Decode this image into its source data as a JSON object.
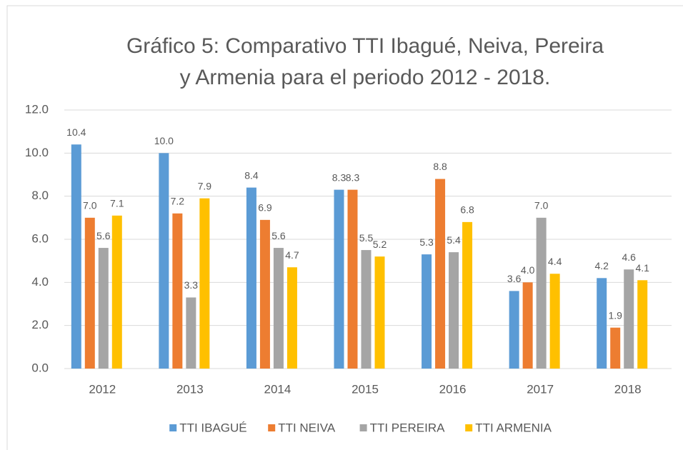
{
  "chart_data": {
    "type": "bar",
    "title": [
      "Gráfico 5: Comparativo TTI Ibagué, Neiva, Pereira",
      "y Armenia para el periodo 2012 - 2018."
    ],
    "categories": [
      "2012",
      "2013",
      "2014",
      "2015",
      "2016",
      "2017",
      "2018"
    ],
    "series": [
      {
        "name": "TTI IBAGUÉ",
        "color": "#5b9bd5",
        "values": [
          10.4,
          10.0,
          8.4,
          8.3,
          5.3,
          3.6,
          4.2
        ],
        "value_labels": [
          "10.4",
          "10.0",
          "8.4",
          "8.3",
          "5.3",
          "3.6",
          "4.2"
        ]
      },
      {
        "name": "TTI NEIVA",
        "color": "#ed7d31",
        "values": [
          7.0,
          7.2,
          6.9,
          8.3,
          8.8,
          4.0,
          1.9
        ],
        "value_labels": [
          "7.0",
          "7.2",
          "6.9",
          "8.3",
          "8.8",
          "4.0",
          "1.9"
        ]
      },
      {
        "name": "TTI PEREIRA",
        "color": "#a5a5a5",
        "values": [
          5.6,
          3.3,
          5.6,
          5.5,
          5.4,
          7.0,
          4.6
        ],
        "value_labels": [
          "5.6",
          "3.3",
          "5.6",
          "5.5",
          "5.4",
          "7.0",
          "4.6"
        ]
      },
      {
        "name": "TTI ARMENIA",
        "color": "#ffc000",
        "values": [
          7.1,
          7.9,
          4.7,
          5.2,
          6.8,
          4.4,
          4.1
        ],
        "value_labels": [
          "7.1",
          "7.9",
          "4.7",
          "5.2",
          "6.8",
          "4.4",
          "4.1"
        ]
      }
    ],
    "ylim": [
      0,
      12
    ],
    "yticks": [
      {
        "value": 0,
        "label": "0.0"
      },
      {
        "value": 2,
        "label": "2.0"
      },
      {
        "value": 4,
        "label": "4.0"
      },
      {
        "value": 6,
        "label": "6.0"
      },
      {
        "value": 8,
        "label": "8.0"
      },
      {
        "value": 10,
        "label": "10.0"
      },
      {
        "value": 12,
        "label": "12.0"
      }
    ],
    "grid": true,
    "legend": "bottom"
  }
}
